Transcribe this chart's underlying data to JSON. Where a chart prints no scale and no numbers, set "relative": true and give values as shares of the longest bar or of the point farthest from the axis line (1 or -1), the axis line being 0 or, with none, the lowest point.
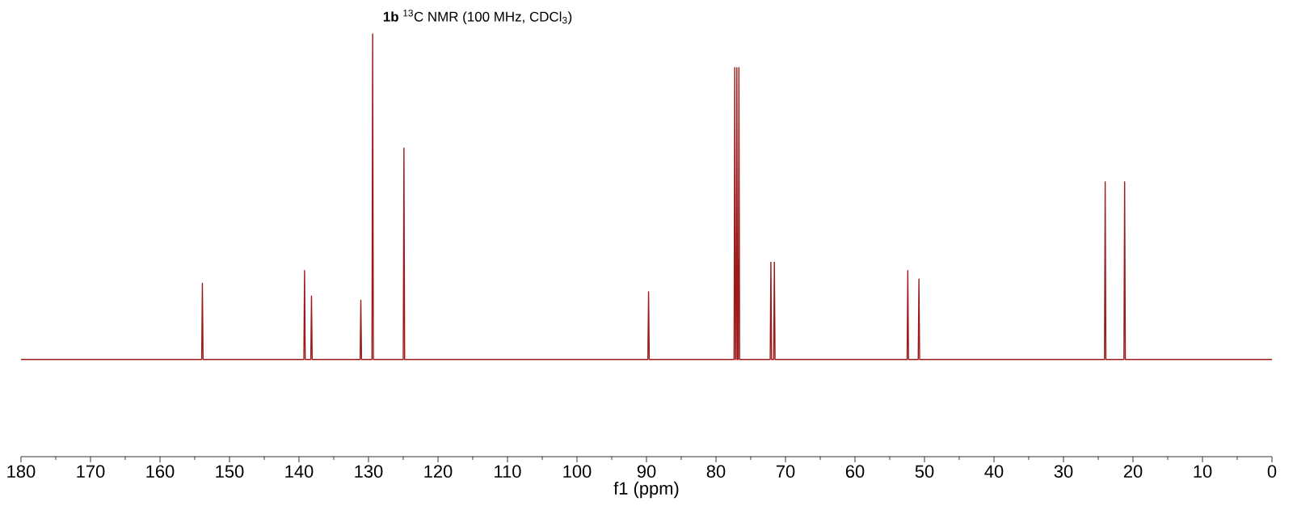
{
  "chart_data": {
    "type": "line",
    "title": "**1b** $^{13}$C NMR (100 MHz, CDCl$_{3}$)",
    "xlabel": "f1 (ppm)",
    "relative": true,
    "color": "#9b1b1b",
    "x": [
      180,
      154.0,
      153.9,
      153.8,
      139.3,
      139.2,
      139.1,
      138.3,
      138.2,
      138.1,
      131.2,
      131.1,
      131.0,
      129.5,
      129.4,
      129.3,
      125.0,
      124.9,
      124.8,
      89.8,
      89.7,
      89.6,
      77.4,
      77.3,
      77.2,
      77.1,
      77.0,
      76.9,
      76.8,
      76.7,
      76.6,
      72.2,
      72.1,
      72.0,
      71.7,
      71.6,
      71.5,
      52.5,
      52.4,
      52.3,
      50.9,
      50.8,
      50.7,
      24.1,
      24.0,
      23.9,
      21.3,
      21.2,
      21.1,
      0
    ],
    "values": [
      0.23,
      0.23,
      0.41,
      0.23,
      0.23,
      0.44,
      0.23,
      0.23,
      0.38,
      0.23,
      0.23,
      0.37,
      0.23,
      0.23,
      1,
      0.23,
      0.23,
      0.73,
      0.23,
      0.23,
      0.39,
      0.23,
      0.23,
      0.92,
      0.23,
      0.23,
      0.92,
      0.23,
      0.23,
      0.92,
      0.23,
      0.23,
      0.46,
      0.23,
      0.23,
      0.46,
      0.23,
      0.23,
      0.44,
      0.23,
      0.23,
      0.42,
      0.23,
      0.23,
      0.65,
      0.23,
      0.23,
      0.65,
      0.23,
      0.23
    ],
    "xlim": [
      180,
      0
    ],
    "xticks": [
      180,
      170,
      160,
      150,
      140,
      130,
      120,
      110,
      100,
      90,
      80,
      70,
      60,
      50,
      40,
      30,
      20,
      10,
      0
    ]
  }
}
